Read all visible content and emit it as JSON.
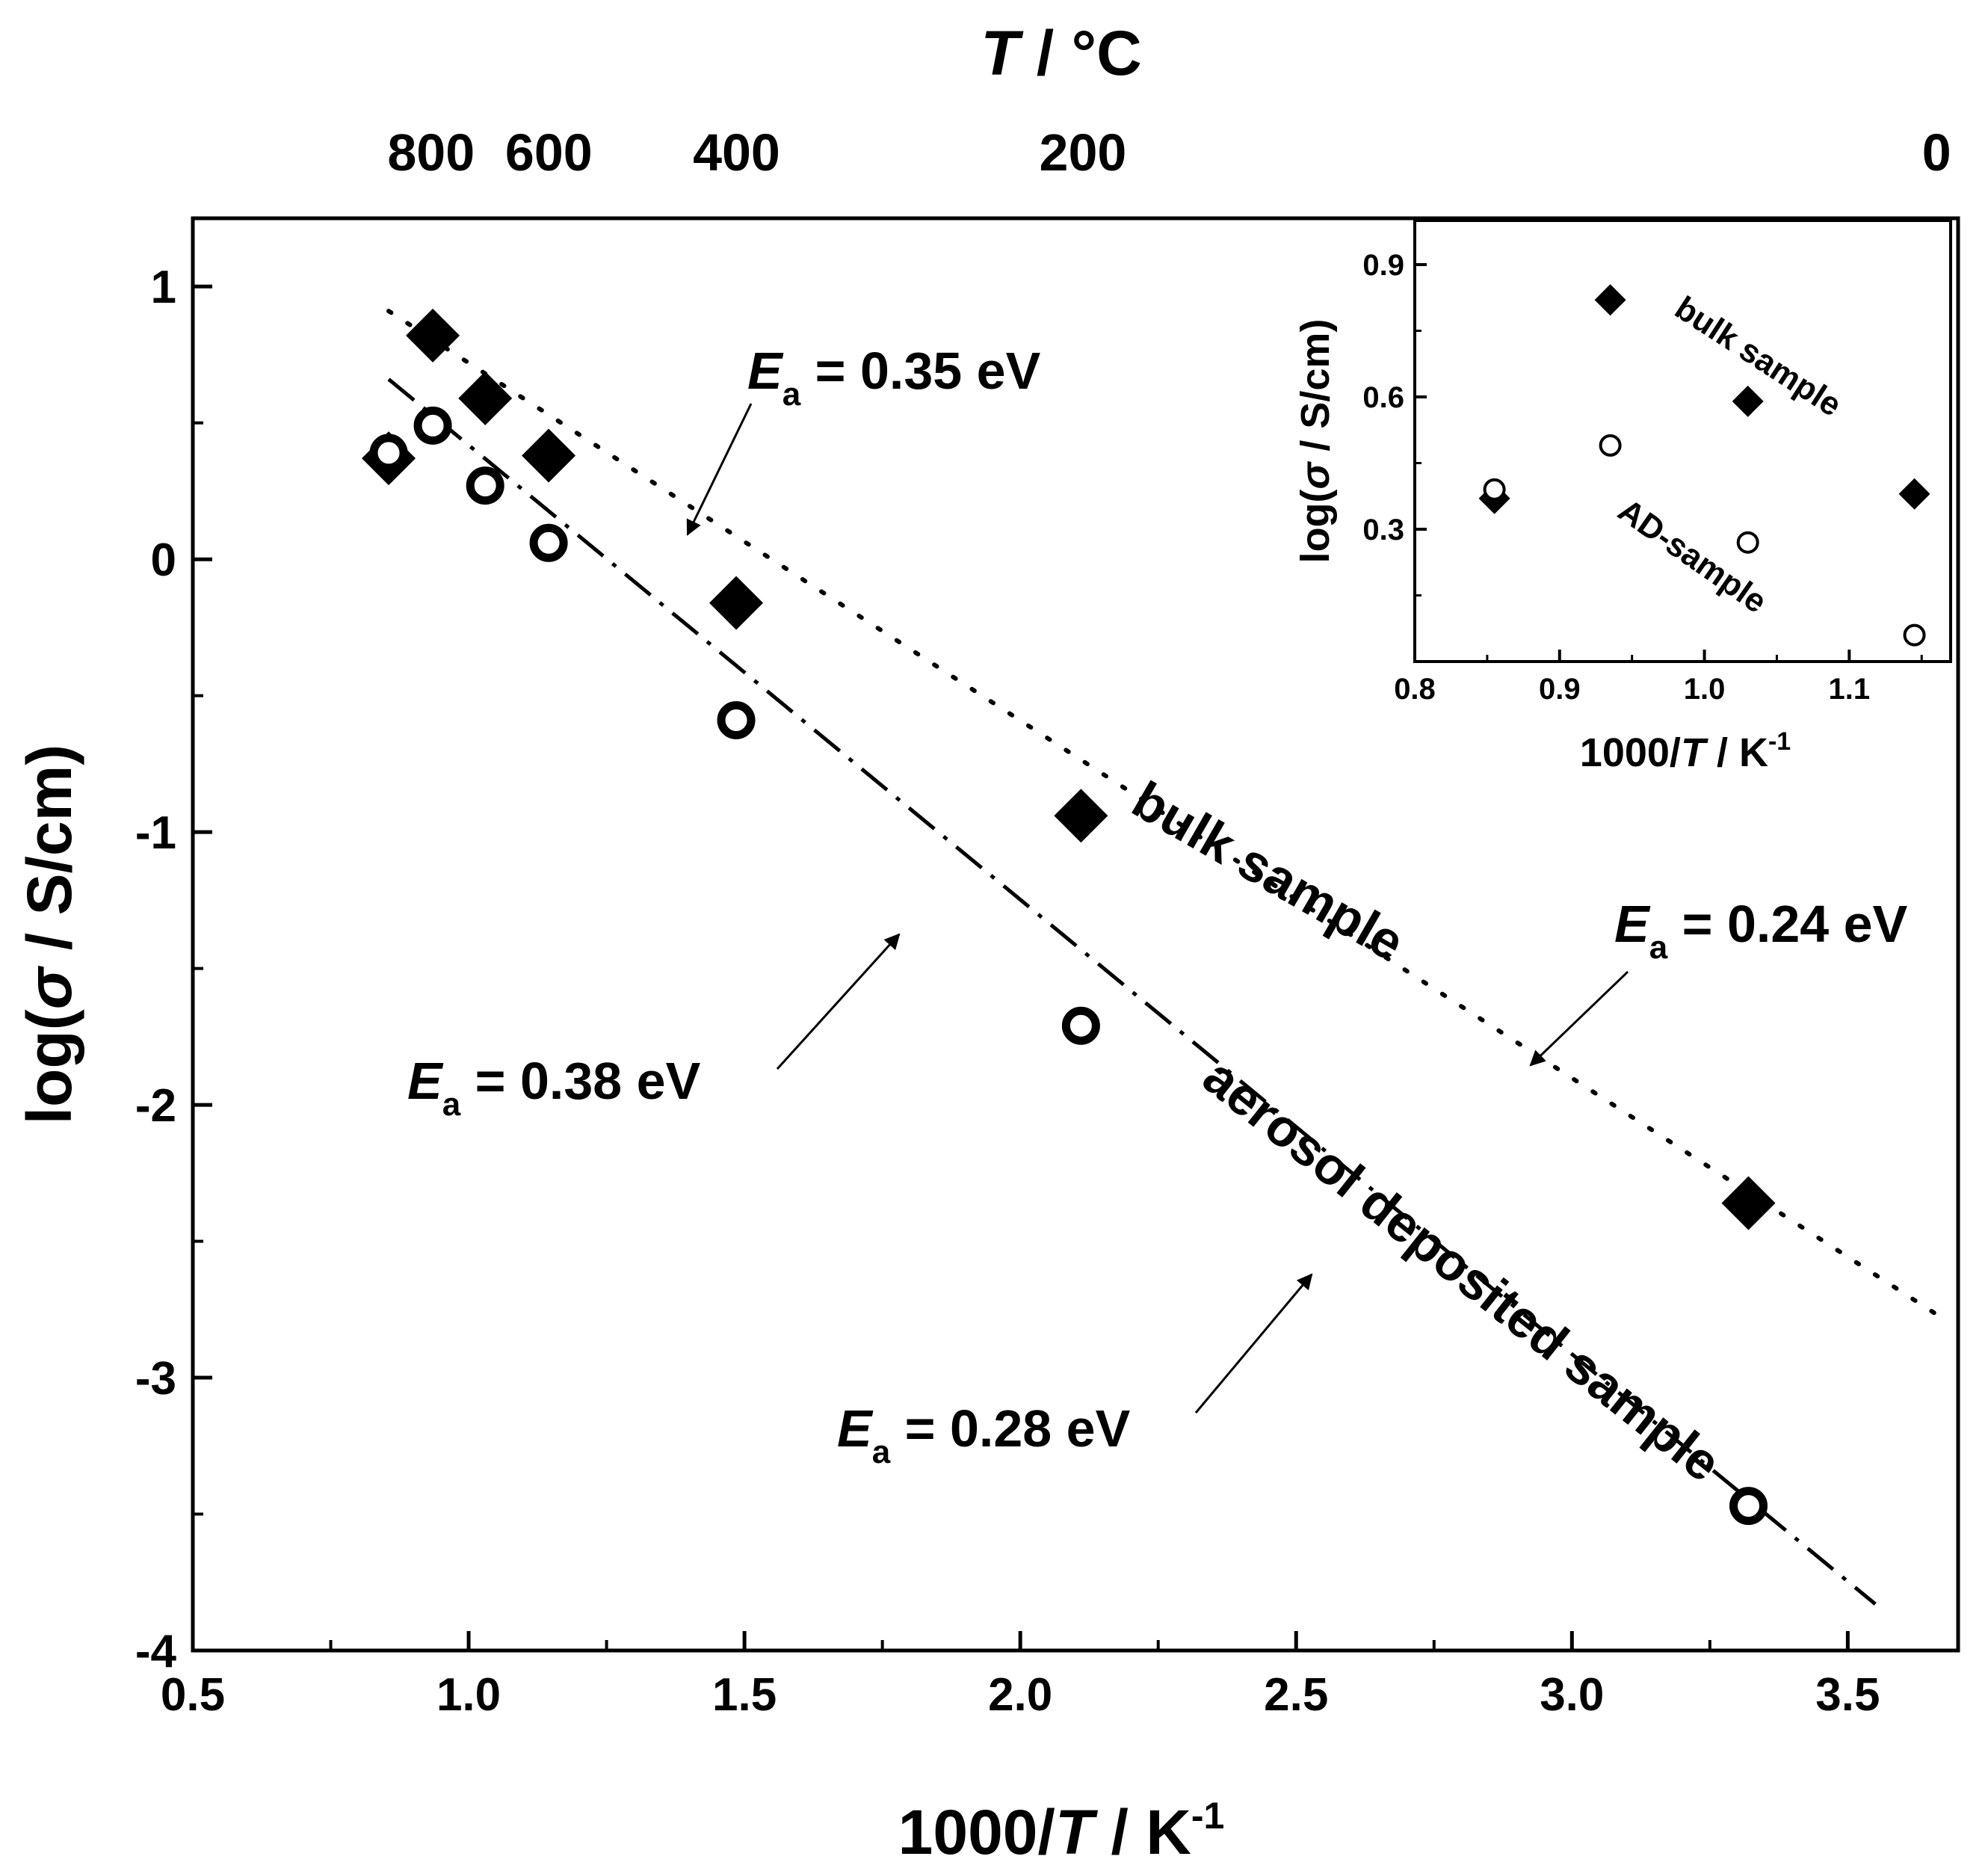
{
  "chart_data": {
    "type": "scatter",
    "main": {
      "x_label": {
        "prefix": "1000/",
        "italic": "T",
        "suffix": " / K",
        "sup": "-1"
      },
      "y_label": {
        "prefix": "log(",
        "italic": "σ",
        "suffix": " / S/cm)"
      },
      "top_label": {
        "italic": "T",
        "suffix": " / °C"
      },
      "xlim": [
        0.5,
        3.7
      ],
      "ylim": [
        -4,
        1.25
      ],
      "x_ticks": [
        "0.5",
        "1.0",
        "1.5",
        "2.0",
        "2.5",
        "3.0",
        "3.5"
      ],
      "x_tick_values": [
        0.5,
        1.0,
        1.5,
        2.0,
        2.5,
        3.0,
        3.5
      ],
      "y_ticks": [
        "1",
        "0",
        "-1",
        "-2",
        "-3",
        "-4"
      ],
      "y_tick_values": [
        1,
        0,
        -1,
        -2,
        -3,
        -4
      ],
      "top_ticks": [
        {
          "label": "800",
          "celsius": 800
        },
        {
          "label": "600",
          "celsius": 600
        },
        {
          "label": "400",
          "celsius": 400
        },
        {
          "label": "200",
          "celsius": 200
        },
        {
          "label": "0",
          "celsius": 0
        }
      ],
      "series": [
        {
          "name": "bulk sample",
          "marker": "filled-diamond",
          "points": [
            [
              0.855,
              0.37
            ],
            [
              0.935,
              0.82
            ],
            [
              1.03,
              0.59
            ],
            [
              1.145,
              0.38
            ],
            [
              1.485,
              -0.16
            ],
            [
              2.11,
              -0.94
            ],
            [
              3.32,
              -2.36
            ]
          ]
        },
        {
          "name": "aerosol deposited sample",
          "marker": "open-circle",
          "points": [
            [
              0.855,
              0.39
            ],
            [
              0.935,
              0.49
            ],
            [
              1.03,
              0.27
            ],
            [
              1.145,
              0.06
            ],
            [
              1.485,
              -0.59
            ],
            [
              2.11,
              -1.71
            ],
            [
              3.32,
              -3.47
            ]
          ]
        }
      ],
      "fit_lines": [
        {
          "name": "bulk dotted fit",
          "style": "dotted",
          "x": [
            0.855,
            3.67
          ],
          "y": [
            0.91,
            -2.78
          ]
        },
        {
          "name": "AD dash-dot fit",
          "style": "dashdot",
          "x": [
            0.855,
            3.55
          ],
          "y": [
            0.66,
            -3.83
          ]
        }
      ],
      "series_labels": {
        "bulk": "bulk sample",
        "ad": "aerosol deposited sample"
      },
      "annotations": [
        {
          "id": "ea_035",
          "symbol": "E",
          "sub": "a",
          "text": " = 0.35 eV"
        },
        {
          "id": "ea_024",
          "symbol": "E",
          "sub": "a",
          "text": " = 0.24 eV"
        },
        {
          "id": "ea_038",
          "symbol": "E",
          "sub": "a",
          "text": " = 0.38 eV"
        },
        {
          "id": "ea_028",
          "symbol": "E",
          "sub": "a",
          "text": " = 0.28 eV"
        }
      ]
    },
    "inset": {
      "x_label": {
        "prefix": "1000/",
        "italic": "T",
        "suffix": " / K",
        "sup": "-1"
      },
      "y_label": {
        "prefix": "log(",
        "italic": "σ",
        "suffix": " / S/cm)"
      },
      "xlim": [
        0.8,
        1.17
      ],
      "ylim": [
        0.0,
        1.0
      ],
      "x_ticks": [
        "0.8",
        "0.9",
        "1.0",
        "1.1"
      ],
      "x_tick_values": [
        0.8,
        0.9,
        1.0,
        1.1
      ],
      "y_ticks": [
        "0.9",
        "0.6",
        "0.3"
      ],
      "y_tick_values": [
        0.9,
        0.6,
        0.3
      ],
      "series": [
        {
          "name": "bulk sample",
          "marker": "filled-diamond",
          "points": [
            [
              0.855,
              0.37
            ],
            [
              0.935,
              0.82
            ],
            [
              1.03,
              0.59
            ],
            [
              1.145,
              0.38
            ]
          ]
        },
        {
          "name": "AD-sample",
          "marker": "open-circle",
          "points": [
            [
              0.855,
              0.39
            ],
            [
              0.935,
              0.49
            ],
            [
              1.03,
              0.27
            ],
            [
              1.145,
              0.06
            ]
          ]
        }
      ],
      "series_labels": {
        "bulk": "bulk sample",
        "ad": "AD-sample"
      }
    }
  }
}
